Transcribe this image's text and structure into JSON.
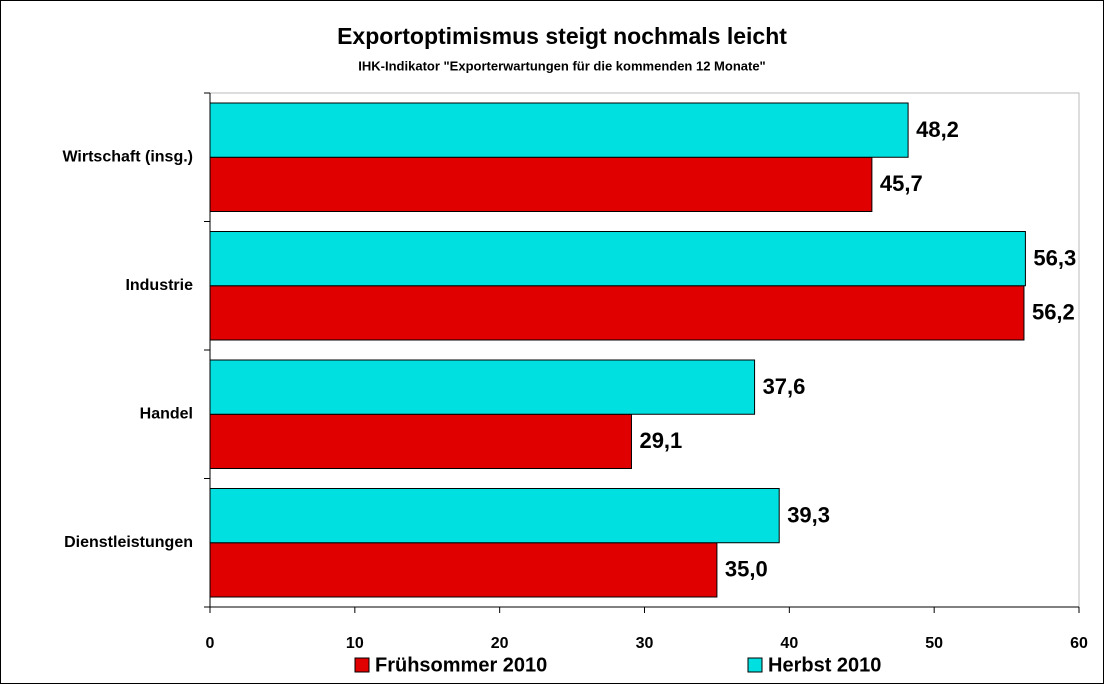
{
  "chart_data": {
    "type": "hbar",
    "title": "Exportoptimismus steigt nochmals leicht",
    "subtitle": "IHK-Indikator \"Exporterwartungen für die kommenden 12 Monate\"",
    "categories": [
      "Wirtschaft (insg.)",
      "Industrie",
      "Handel",
      "Dienstleistungen"
    ],
    "series": [
      {
        "name": "Frühsommer 2010",
        "color": "#e00000",
        "values": [
          45.7,
          56.2,
          29.1,
          35.0
        ],
        "value_labels": [
          "45,7",
          "56,2",
          "29,1",
          "35,0"
        ]
      },
      {
        "name": "Herbst 2010",
        "color": "#00e0e0",
        "values": [
          48.2,
          56.3,
          37.6,
          39.3
        ],
        "value_labels": [
          "48,2",
          "56,3",
          "37,6",
          "39,3"
        ]
      }
    ],
    "xlim": [
      0,
      60
    ],
    "xticks": [
      0,
      10,
      20,
      30,
      40,
      50,
      60
    ],
    "legend": "bottom"
  }
}
